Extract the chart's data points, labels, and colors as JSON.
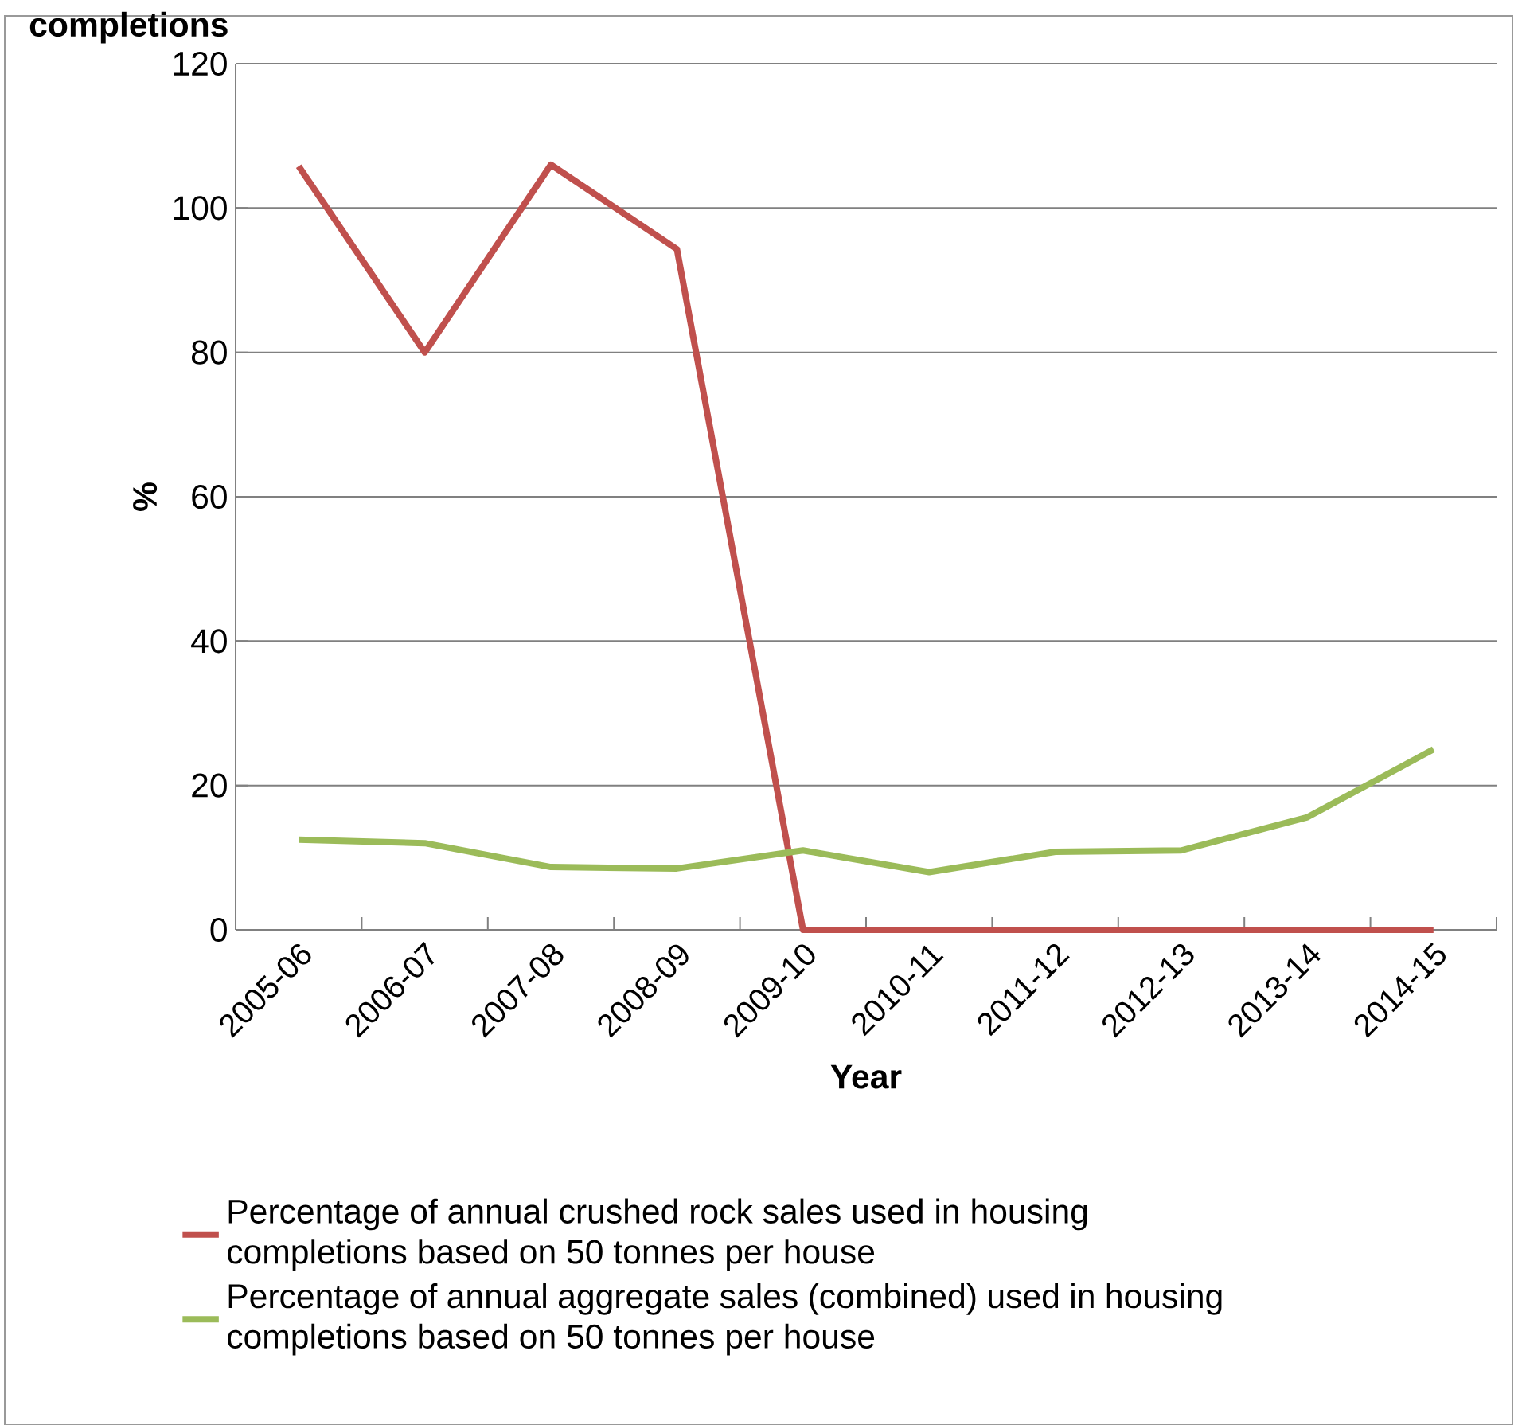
{
  "chart_data": {
    "type": "line",
    "title": "completions",
    "xlabel": "Year",
    "ylabel": "%",
    "categories": [
      "2005-06",
      "2006-07",
      "2007-08",
      "2008-09",
      "2009-10",
      "2010-11",
      "2011-12",
      "2012-13",
      "2013-14",
      "2014-15"
    ],
    "series": [
      {
        "name": "Percentage of annual crushed rock sales used in housing completions based on 50 tonnes per house",
        "color": "#c0504d",
        "values": [
          105.8,
          80,
          106,
          94.3,
          0,
          0,
          0,
          0,
          0,
          0
        ]
      },
      {
        "name": "Percentage of annual aggregate sales (combined) used in housing completions based on 50 tonnes per house",
        "color": "#9bbb59",
        "values": [
          12.5,
          12,
          8.7,
          8.5,
          11,
          8,
          10.8,
          11,
          15.6,
          25
        ]
      }
    ],
    "ylim": [
      0,
      120
    ],
    "yticks": [
      0,
      20,
      40,
      60,
      80,
      100,
      120
    ],
    "grid": "y",
    "legend": "bottom",
    "marker": "none",
    "line_style": "solid"
  }
}
